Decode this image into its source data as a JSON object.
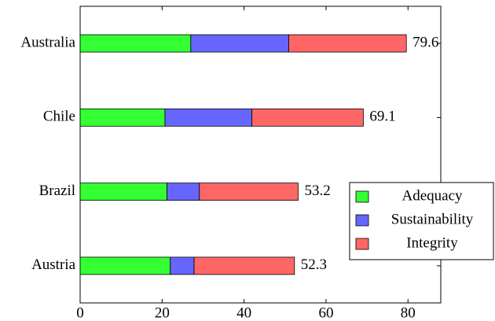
{
  "chart_data": {
    "type": "stacked-bar-horizontal",
    "categories": [
      "Austria",
      "Brazil",
      "Chile",
      "Australia"
    ],
    "series": [
      {
        "name": "Adequacy",
        "color": "#33ff33",
        "values": [
          22.0,
          21.2,
          20.7,
          27.0
        ]
      },
      {
        "name": "Sustainability",
        "color": "#6666ff",
        "values": [
          5.8,
          7.9,
          21.2,
          23.9
        ]
      },
      {
        "name": "Integrity",
        "color": "#ff6666",
        "values": [
          24.5,
          24.1,
          27.2,
          28.7
        ]
      }
    ],
    "totals": [
      52.3,
      53.2,
      69.1,
      79.6
    ],
    "xlim": [
      0,
      88
    ],
    "xticks": [
      0,
      20,
      40,
      60,
      80
    ],
    "legend": "right"
  }
}
